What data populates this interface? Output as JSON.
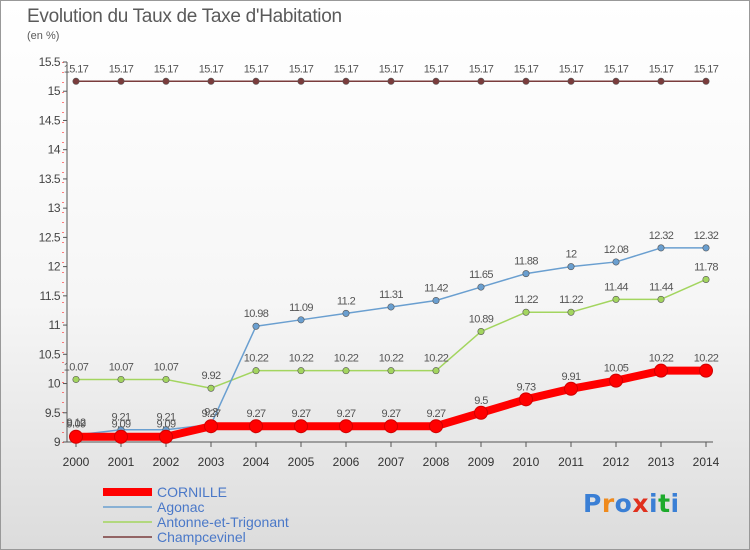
{
  "title": "Evolution du Taux de Taxe d'Habitation",
  "unit": "(en %)",
  "logo": {
    "text": "Proxiti",
    "colors": [
      "#3a7fd5",
      "#ef8a1d",
      "#3a7fd5",
      "#e0301e",
      "#3a7fd5",
      "#1eaa2c",
      "#3a7fd5"
    ]
  },
  "chart_data": {
    "type": "line",
    "title": "Evolution du Taux de Taxe d'Habitation",
    "ylabel": "(en %)",
    "xlabel": "",
    "x": [
      "2000",
      "2001",
      "2002",
      "2003",
      "2004",
      "2005",
      "2006",
      "2007",
      "2008",
      "2009",
      "2010",
      "2011",
      "2012",
      "2013",
      "2014"
    ],
    "ylim": [
      9,
      15.5
    ],
    "yticks": [
      "9",
      "9.5",
      "10",
      "10.5",
      "11",
      "11.5",
      "12",
      "12.5",
      "13",
      "13.5",
      "14",
      "14.5",
      "15",
      "15.5"
    ],
    "grid": false,
    "legend_position": "bottom-left",
    "series": [
      {
        "name": "CORNILLE",
        "color": "#ff0000",
        "values": [
          9.09,
          9.09,
          9.09,
          9.27,
          9.27,
          9.27,
          9.27,
          9.27,
          9.27,
          9.5,
          9.73,
          9.91,
          10.05,
          10.22,
          10.22
        ],
        "labels": [
          "9.09",
          "9.09",
          "9.09",
          "9.27",
          "9.27",
          "9.27",
          "9.27",
          "9.27",
          "9.27",
          "9.5",
          "9.73",
          "9.91",
          "10.05",
          "10.22",
          "10.22"
        ]
      },
      {
        "name": "Agonac",
        "color": "#6a9fd0",
        "values": [
          9.12,
          9.21,
          9.21,
          9.3,
          10.98,
          11.09,
          11.2,
          11.31,
          11.42,
          11.65,
          11.88,
          12,
          12.08,
          12.32,
          12.32
        ],
        "labels": [
          "9.12",
          "9.21",
          "9.21",
          "9.3",
          "10.98",
          "11.09",
          "11.2",
          "11.31",
          "11.42",
          "11.65",
          "11.88",
          "12",
          "12.08",
          "12.32",
          "12.32"
        ]
      },
      {
        "name": "Antonne-et-Trigonant",
        "color": "#a3d55f",
        "values": [
          10.07,
          10.07,
          10.07,
          9.92,
          10.22,
          10.22,
          10.22,
          10.22,
          10.22,
          10.89,
          11.22,
          11.22,
          11.44,
          11.44,
          11.78
        ],
        "labels": [
          "10.07",
          "10.07",
          "10.07",
          "9.92",
          "10.22",
          "10.22",
          "10.22",
          "10.22",
          "10.22",
          "10.89",
          "11.22",
          "11.22",
          "11.44",
          "11.44",
          "11.78"
        ]
      },
      {
        "name": "Champcevinel",
        "color": "#7a3c3c",
        "values": [
          15.17,
          15.17,
          15.17,
          15.17,
          15.17,
          15.17,
          15.17,
          15.17,
          15.17,
          15.17,
          15.17,
          15.17,
          15.17,
          15.17,
          15.17
        ],
        "labels": [
          "15.17",
          "15.17",
          "15.17",
          "15.17",
          "15.17",
          "15.17",
          "15.17",
          "15.17",
          "15.17",
          "15.17",
          "15.17",
          "15.17",
          "15.17",
          "15.17",
          "15.17"
        ]
      }
    ]
  }
}
